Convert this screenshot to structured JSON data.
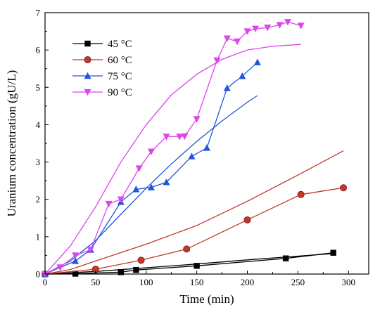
{
  "chart_data": {
    "type": "line",
    "xlabel": "Time (min)",
    "ylabel": "Uranium concentration (gU/L)",
    "xlim": [
      0,
      320
    ],
    "ylim": [
      0,
      7
    ],
    "xticks": [
      0,
      50,
      100,
      150,
      200,
      250,
      300
    ],
    "yticks": [
      0,
      1,
      2,
      3,
      4,
      5,
      6,
      7
    ],
    "legend_position": "top-left",
    "grid": false,
    "series": [
      {
        "name": "45 °C",
        "color": "#000000",
        "marker": "square",
        "x": [
          0,
          30,
          75,
          90,
          150,
          238,
          285
        ],
        "y": [
          0,
          0.01,
          0.05,
          0.11,
          0.22,
          0.42,
          0.57
        ],
        "fit": {
          "x": [
            0,
            50,
            100,
            150,
            200,
            250,
            285
          ],
          "y": [
            0,
            0.07,
            0.17,
            0.27,
            0.38,
            0.48,
            0.55
          ]
        }
      },
      {
        "name": "60 °C",
        "color": "#c0392b",
        "marker": "circle",
        "x": [
          0,
          50,
          95,
          140,
          200,
          253,
          295
        ],
        "y": [
          0,
          0.13,
          0.37,
          0.67,
          1.45,
          2.13,
          2.31
        ],
        "fit": {
          "x": [
            0,
            25,
            50,
            100,
            150,
            200,
            250,
            295
          ],
          "y": [
            0,
            0.12,
            0.35,
            0.8,
            1.3,
            1.95,
            2.65,
            3.3
          ]
        }
      },
      {
        "name": "75 °C",
        "color": "#2255dd",
        "marker": "triangle-up",
        "x": [
          0,
          30,
          45,
          75,
          90,
          105,
          120,
          145,
          160,
          180,
          195,
          210
        ],
        "y": [
          0,
          0.35,
          0.65,
          1.93,
          2.27,
          2.32,
          2.46,
          3.15,
          3.38,
          4.98,
          5.3,
          5.67
        ],
        "fit": {
          "x": [
            0,
            25,
            50,
            75,
            100,
            125,
            150,
            175,
            200,
            210
          ],
          "y": [
            0,
            0.35,
            0.9,
            1.6,
            2.3,
            2.95,
            3.55,
            4.1,
            4.6,
            4.78
          ]
        }
      },
      {
        "name": "90 °C",
        "color": "#dd44ee",
        "marker": "triangle-down",
        "x": [
          0,
          15,
          30,
          45,
          63,
          75,
          93,
          105,
          120,
          133,
          138,
          150,
          170,
          180,
          190,
          200,
          208,
          220,
          232,
          240,
          253
        ],
        "y": [
          0,
          0.18,
          0.5,
          0.65,
          1.88,
          2.0,
          2.83,
          3.28,
          3.68,
          3.68,
          3.69,
          4.15,
          5.72,
          6.31,
          6.23,
          6.5,
          6.57,
          6.6,
          6.67,
          6.75,
          6.65
        ],
        "fit": {
          "x": [
            0,
            25,
            50,
            75,
            100,
            125,
            150,
            175,
            200,
            225,
            253
          ],
          "y": [
            0,
            0.75,
            1.8,
            3.0,
            4.0,
            4.8,
            5.35,
            5.75,
            6.0,
            6.1,
            6.15
          ]
        }
      }
    ]
  }
}
